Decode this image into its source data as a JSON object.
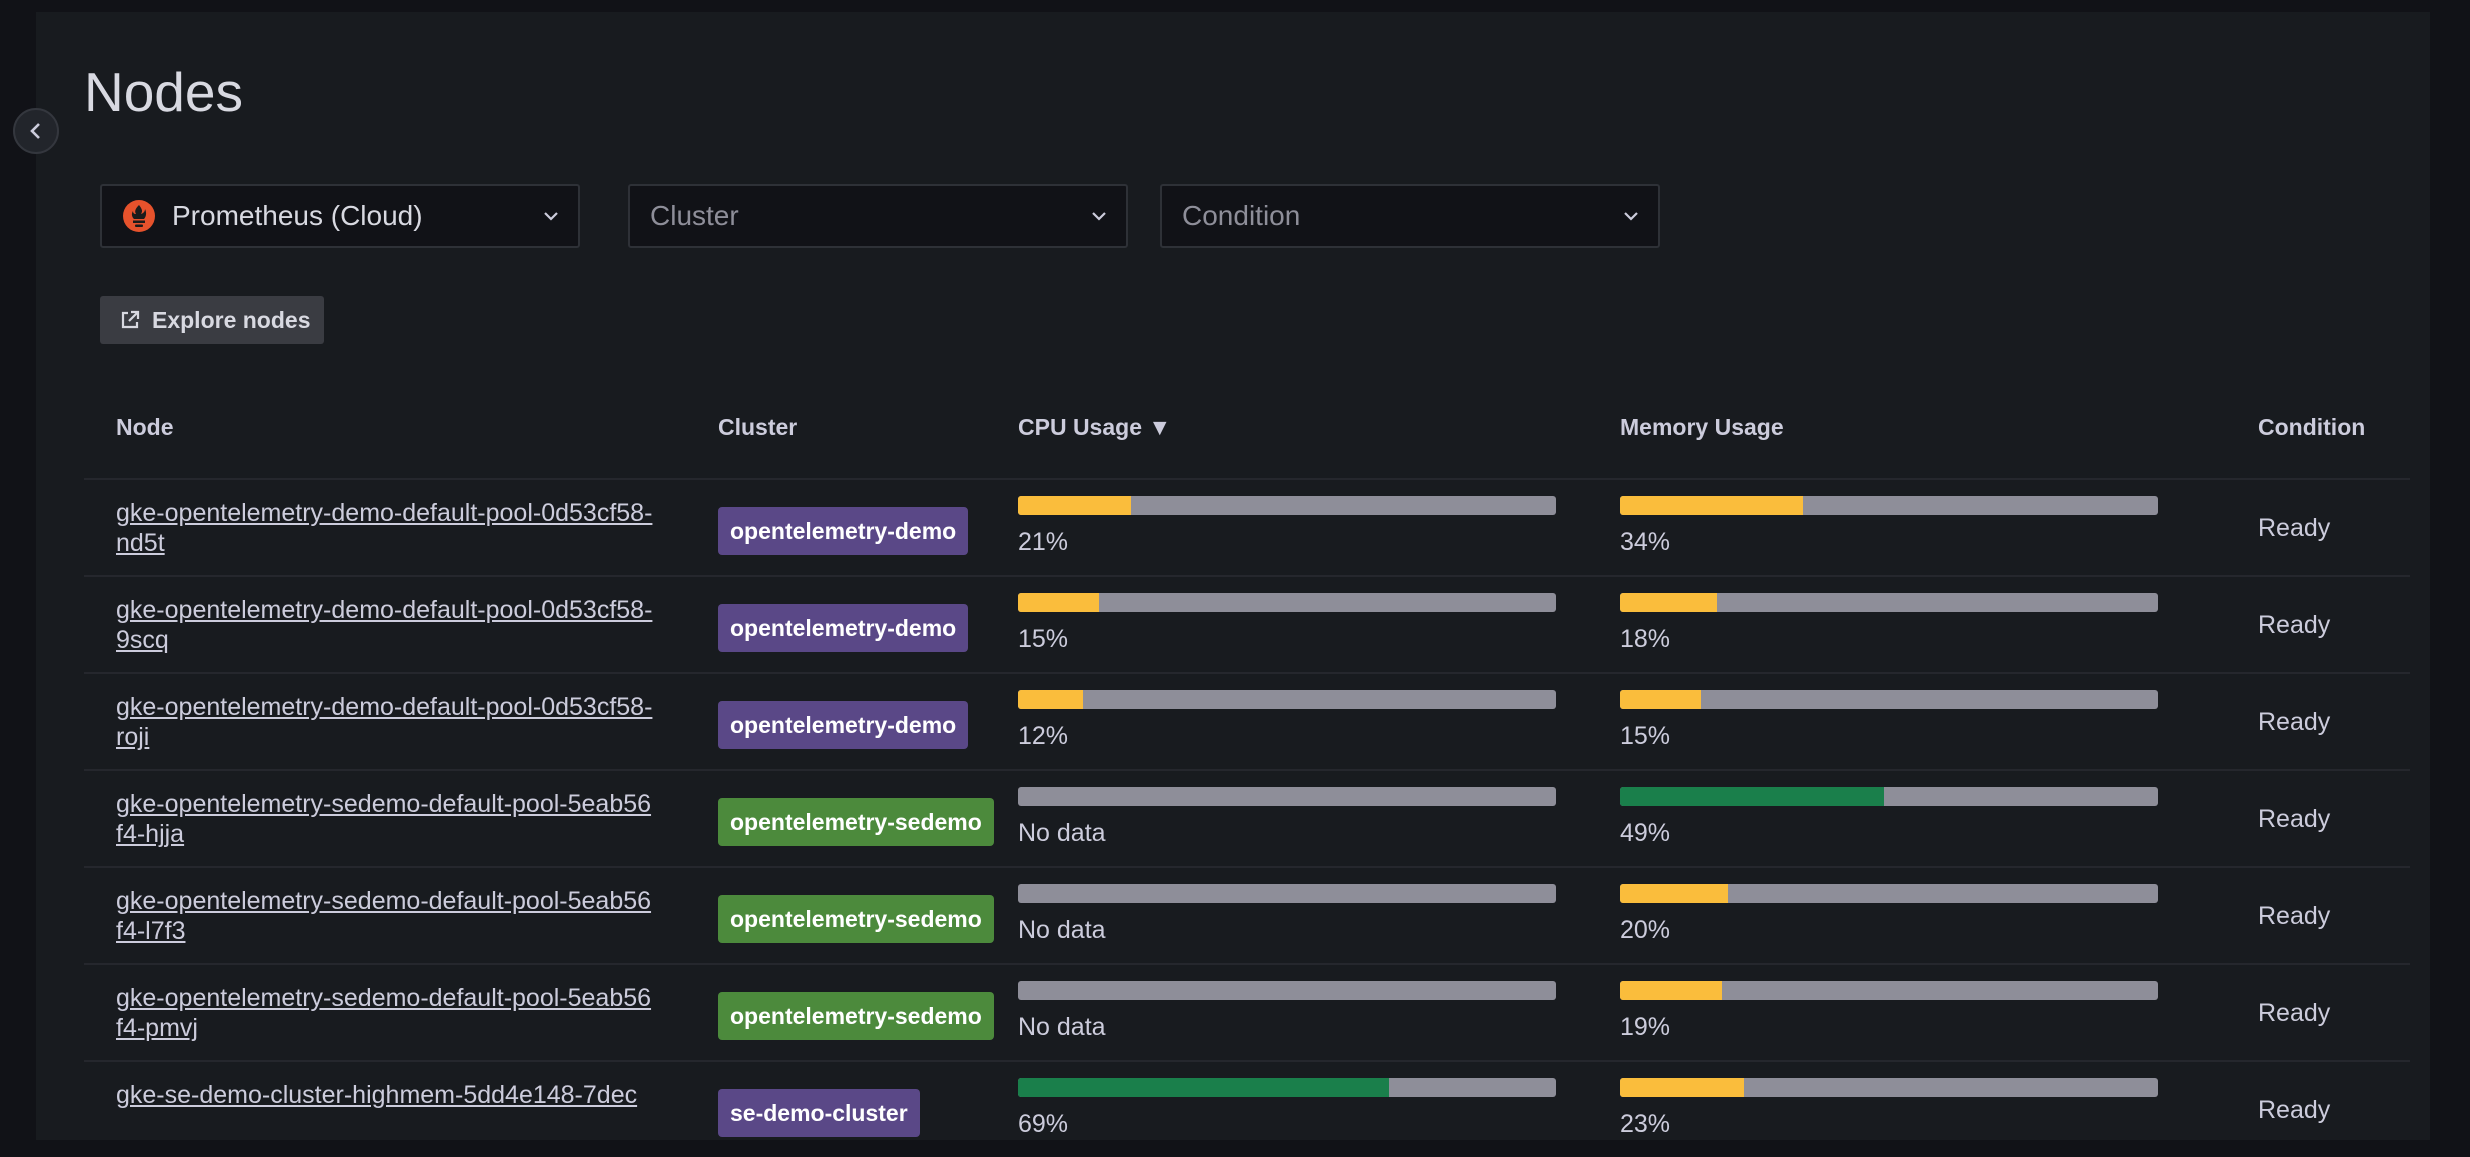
{
  "page": {
    "title": "Nodes"
  },
  "filters": {
    "datasource": {
      "value": "Prometheus (Cloud)",
      "icon": "prometheus-icon",
      "icon_color": "#e6522c"
    },
    "cluster": {
      "placeholder": "Cluster"
    },
    "condition": {
      "placeholder": "Condition"
    }
  },
  "explore_button": {
    "label": "Explore nodes",
    "icon": "external-link-icon"
  },
  "table": {
    "headers": {
      "node": "Node",
      "cluster": "Cluster",
      "cpu": "CPU Usage ▼",
      "memory": "Memory Usage",
      "condition": "Condition"
    },
    "rows": [
      {
        "node": "gke-opentelemetry-demo-default-pool-0d53cf58-nd5t",
        "cluster": "opentelemetry-demo",
        "cluster_color": "#5a4887",
        "cpu": 0.21,
        "cpu_label": "21%",
        "cpu_color": "#fabd3c",
        "memory": 0.34,
        "memory_label": "34%",
        "memory_color": "#fabd3c",
        "condition": "Ready"
      },
      {
        "node": "gke-opentelemetry-demo-default-pool-0d53cf58-9scq",
        "cluster": "opentelemetry-demo",
        "cluster_color": "#5a4887",
        "cpu": 0.15,
        "cpu_label": "15%",
        "cpu_color": "#fabd3c",
        "memory": 0.18,
        "memory_label": "18%",
        "memory_color": "#fabd3c",
        "condition": "Ready"
      },
      {
        "node": "gke-opentelemetry-demo-default-pool-0d53cf58-roji",
        "cluster": "opentelemetry-demo",
        "cluster_color": "#5a4887",
        "cpu": 0.12,
        "cpu_label": "12%",
        "cpu_color": "#fabd3c",
        "memory": 0.15,
        "memory_label": "15%",
        "memory_color": "#fabd3c",
        "condition": "Ready"
      },
      {
        "node": "gke-opentelemetry-sedemo-default-pool-5eab56f4-hjja",
        "cluster": "opentelemetry-sedemo",
        "cluster_color": "#4c8a3c",
        "cpu": 0,
        "cpu_label": "No data",
        "cpu_color": "#8e8e99",
        "memory": 0.49,
        "memory_label": "49%",
        "memory_color": "#1a7f4b",
        "condition": "Ready"
      },
      {
        "node": "gke-opentelemetry-sedemo-default-pool-5eab56f4-l7f3",
        "cluster": "opentelemetry-sedemo",
        "cluster_color": "#4c8a3c",
        "cpu": 0,
        "cpu_label": "No data",
        "cpu_color": "#8e8e99",
        "memory": 0.2,
        "memory_label": "20%",
        "memory_color": "#fabd3c",
        "condition": "Ready"
      },
      {
        "node": "gke-opentelemetry-sedemo-default-pool-5eab56f4-pmvj",
        "cluster": "opentelemetry-sedemo",
        "cluster_color": "#4c8a3c",
        "cpu": 0,
        "cpu_label": "No data",
        "cpu_color": "#8e8e99",
        "memory": 0.19,
        "memory_label": "19%",
        "memory_color": "#fabd3c",
        "condition": "Ready"
      },
      {
        "node": "gke-se-demo-cluster-highmem-5dd4e148-7dec",
        "cluster": "se-demo-cluster",
        "cluster_color": "#5a4887",
        "cpu": 0.69,
        "cpu_label": "69%",
        "cpu_color": "#1a7f4b",
        "memory": 0.23,
        "memory_label": "23%",
        "memory_color": "#fabd3c",
        "condition": "Ready"
      }
    ]
  }
}
